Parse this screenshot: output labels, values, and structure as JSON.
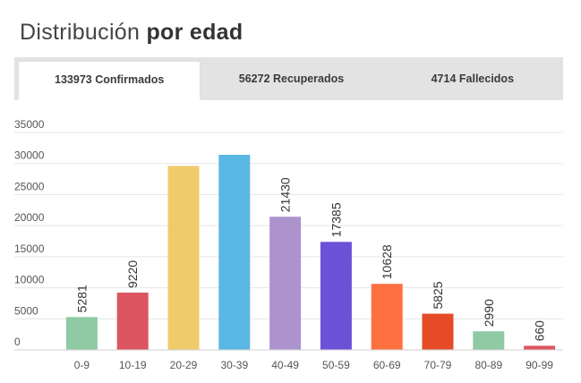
{
  "header": {
    "title_light": "Distribución",
    "title_bold": "por edad"
  },
  "tabs": [
    {
      "label": "133973 Confirmados",
      "active": true
    },
    {
      "label": "56272 Recuperados",
      "active": false
    },
    {
      "label": "4714 Fallecidos",
      "active": false
    }
  ],
  "chart_data": {
    "type": "bar",
    "categories": [
      "0-9",
      "10-19",
      "20-29",
      "30-39",
      "40-49",
      "50-59",
      "60-69",
      "70-79",
      "80-89",
      "90-99"
    ],
    "values": [
      5281,
      9220,
      29600,
      31400,
      21430,
      17385,
      10628,
      5825,
      2990,
      660
    ],
    "data_labels": [
      "5281",
      "9220",
      "",
      "",
      "21430",
      "17385",
      "10628",
      "5825",
      "2990",
      "660"
    ],
    "colors": [
      "#8fcaa5",
      "#dd5561",
      "#f0cb6b",
      "#5ab6e3",
      "#ac93cd",
      "#6b51d6",
      "#ff7040",
      "#e54b26",
      "#8fcaa5",
      "#dd5561"
    ],
    "y_ticks": [
      0,
      5000,
      10000,
      15000,
      20000,
      25000,
      30000,
      35000
    ],
    "ylim": [
      0,
      35000
    ],
    "grid": true,
    "title": "",
    "xlabel": "",
    "ylabel": ""
  }
}
